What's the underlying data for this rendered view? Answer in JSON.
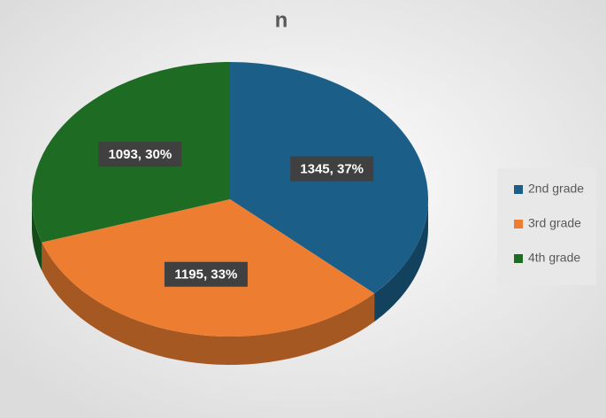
{
  "chart_data": {
    "type": "pie",
    "title": "n",
    "categories": [
      "2nd grade",
      "3rd grade",
      "4th grade"
    ],
    "values": [
      1345,
      1195,
      1093
    ],
    "value_labels": [
      "1345, 37%",
      "1195, 33%",
      "1093, 30%"
    ],
    "colors": [
      "#1b5e88",
      "#ed7d31",
      "#1e6b24"
    ],
    "legend": "right"
  }
}
